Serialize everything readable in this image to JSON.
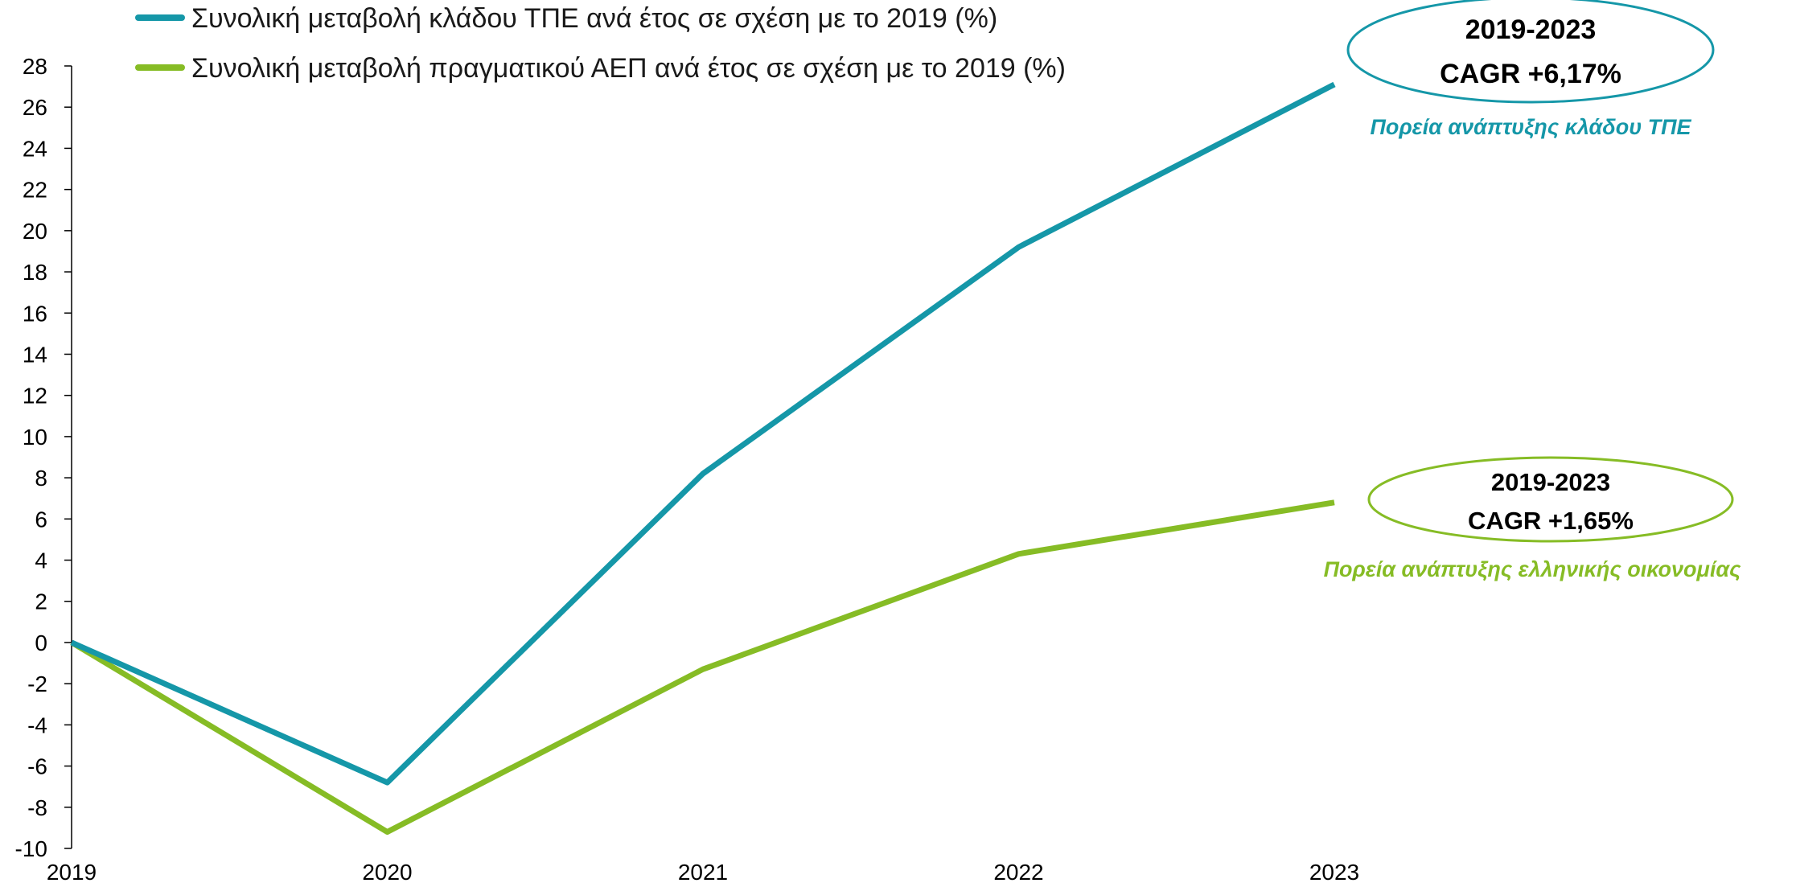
{
  "colors": {
    "ict": "#1597a8",
    "gdp": "#86bc25",
    "axis": "#000000"
  },
  "legend": {
    "position": "top",
    "items": [
      {
        "label": "Συνολική μεταβολή κλάδου ΤΠΕ ανά έτος σε σχέση με το 2019 (%)",
        "color_key": "ict"
      },
      {
        "label": "Συνολική μεταβολή πραγματικού ΑΕΠ ανά έτος σε σχέση με το 2019 (%)",
        "color_key": "gdp"
      }
    ]
  },
  "callouts": {
    "ict": {
      "line1": "2019-2023",
      "line2": "CAGR +6,17%",
      "note": "Πορεία ανάπτυξης κλάδου ΤΠΕ"
    },
    "gdp": {
      "line1": "2019-2023",
      "line2": "CAGR +1,65%",
      "note": "Πορεία ανάπτυξης ελληνικής οικονομίας"
    }
  },
  "chart_data": {
    "type": "line",
    "title": "",
    "xlabel": "",
    "ylabel": "",
    "x": [
      "2019",
      "2020",
      "2021",
      "2022",
      "2023"
    ],
    "ylim": [
      -10,
      28
    ],
    "ytick_step": 2,
    "grid": false,
    "series": [
      {
        "name": "Συνολική μεταβολή κλάδου ΤΠΕ ανά έτος σε σχέση με το 2019 (%)",
        "color_key": "ict",
        "values": [
          0,
          -6.8,
          8.2,
          19.2,
          27.1
        ]
      },
      {
        "name": "Συνολική μεταβολή πραγματικού ΑΕΠ ανά έτος σε σχέση με το 2019 (%)",
        "color_key": "gdp",
        "values": [
          0,
          -9.2,
          -1.3,
          4.3,
          6.8
        ]
      }
    ]
  }
}
